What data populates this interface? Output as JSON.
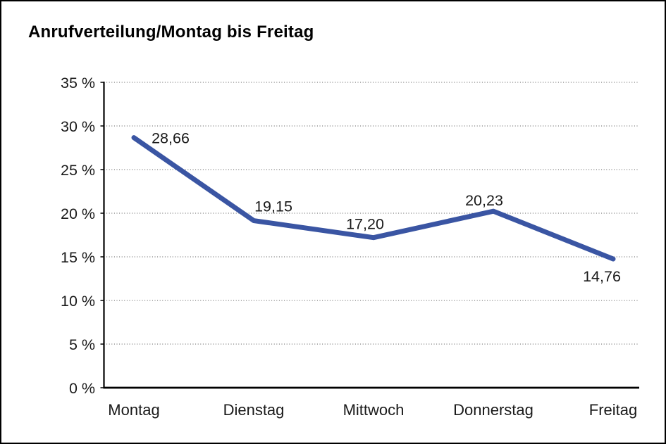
{
  "chart_data": {
    "type": "line",
    "title": "Anrufverteilung/Montag bis Freitag",
    "categories": [
      "Montag",
      "Dienstag",
      "Mittwoch",
      "Donnerstag",
      "Freitag"
    ],
    "values": [
      28.66,
      19.15,
      17.2,
      20.23,
      14.76
    ],
    "value_labels": [
      "28,66",
      "19,15",
      "17,20",
      "20,23",
      "14,76"
    ],
    "series_name": "Anrufverteilung",
    "xlabel": "",
    "ylabel": "",
    "ylim": [
      0,
      35
    ],
    "y_tick_step": 5,
    "y_tick_labels": [
      "0 %",
      "5 %",
      "10 %",
      "15 %",
      "20 %",
      "25 %",
      "30 %",
      "35 %"
    ],
    "grid": "horizontal-dotted",
    "legend": "none",
    "colors": {
      "line": "#3a55a3",
      "axis": "#000000",
      "gridline": "#555555",
      "text": "#1a1a1a",
      "background": "#ffffff"
    }
  }
}
